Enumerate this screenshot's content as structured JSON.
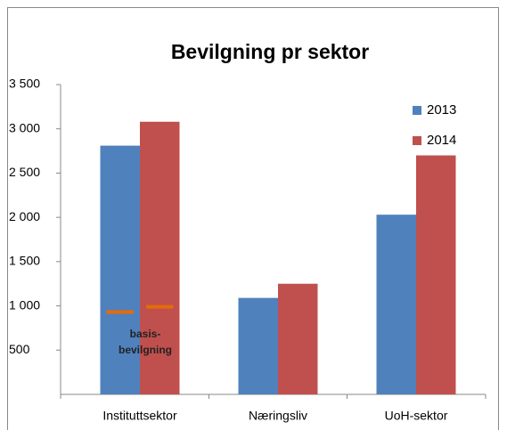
{
  "chart_data": {
    "type": "bar",
    "title": "Bevilgning pr sektor",
    "categories": [
      "Instituttsektor",
      "Næringsliv",
      "UoH-sektor"
    ],
    "series": [
      {
        "name": "2013",
        "color": "#4f81bd",
        "values": [
          2810,
          1090,
          2030
        ]
      },
      {
        "name": "2014",
        "color": "#c0504d",
        "values": [
          3080,
          1250,
          2700
        ]
      }
    ],
    "ylim": [
      0,
      3500
    ],
    "yticks": [
      500,
      {
        "value": 1000,
        "label": "1 000"
      },
      {
        "value": 1500,
        "label": "1 500"
      },
      {
        "value": 2000,
        "label": "2 000"
      },
      {
        "value": 2500,
        "label": "2 500"
      },
      {
        "value": 3000,
        "label": "3 000"
      },
      {
        "value": 3500,
        "label": "3 500"
      }
    ],
    "grid": false,
    "legend": "upper right",
    "basis": {
      "label_lines": [
        "basis-",
        "bevilgning"
      ],
      "values": [
        930,
        990
      ],
      "color": "#e36c09"
    }
  }
}
